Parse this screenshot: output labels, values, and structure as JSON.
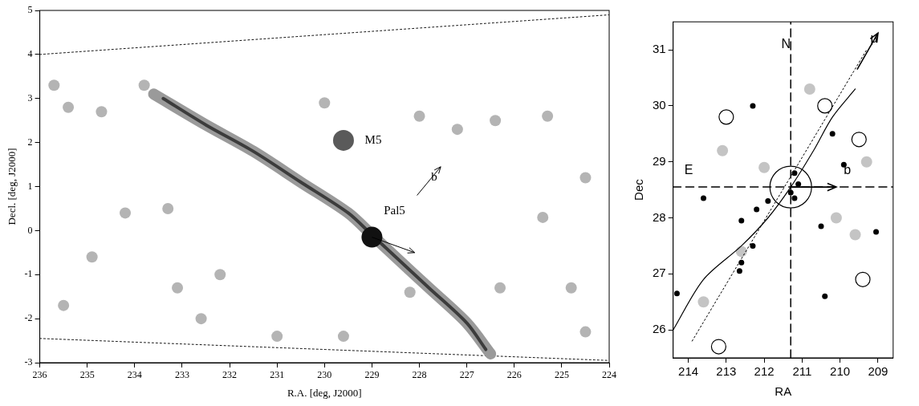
{
  "chart_data": [
    {
      "type": "scatter",
      "x_label": "R.A. [deg, J2000]",
      "y_label": "Decl. [deg, J2000]",
      "xlim": [
        236,
        224
      ],
      "xticks": [
        236,
        235,
        234,
        233,
        232,
        231,
        230,
        229,
        228,
        227,
        226,
        225,
        224
      ],
      "ylim": [
        -3,
        5
      ],
      "yticks": [
        -3,
        -2,
        -1,
        0,
        1,
        2,
        3,
        4,
        5
      ],
      "grid": false,
      "series": [
        {
          "color": "#000000",
          "marker": "none",
          "line_style": "dotted",
          "values": [
            [
              236,
              4.0
            ],
            [
              224,
              4.9
            ]
          ]
        },
        {
          "color": "#000000",
          "marker": "none",
          "line_style": "dotted",
          "values": [
            [
              236,
              -2.45
            ],
            [
              224,
              -2.95
            ]
          ]
        },
        {
          "color": "#b4b4b4",
          "marker": "blob",
          "line_style": "none",
          "values": [
            [
              235.7,
              3.3
            ],
            [
              235.4,
              2.8
            ],
            [
              234.7,
              2.7
            ],
            [
              233.8,
              3.3
            ],
            [
              234.2,
              0.4
            ],
            [
              233.3,
              0.5
            ],
            [
              234.9,
              -0.6
            ],
            [
              235.5,
              -1.7
            ],
            [
              233.1,
              -1.3
            ],
            [
              232.6,
              -2.0
            ],
            [
              231.0,
              -2.4
            ],
            [
              229.6,
              -2.4
            ],
            [
              228.0,
              2.6
            ],
            [
              227.2,
              2.3
            ],
            [
              226.4,
              2.5
            ],
            [
              225.3,
              2.6
            ],
            [
              224.5,
              1.2
            ],
            [
              225.4,
              0.3
            ],
            [
              224.8,
              -1.3
            ],
            [
              224.5,
              -2.3
            ],
            [
              226.3,
              -1.3
            ],
            [
              228.2,
              -1.4
            ],
            [
              230.0,
              2.9
            ],
            [
              232.2,
              -1.0
            ]
          ]
        },
        {
          "color": "#9a9a9a",
          "marker": "none",
          "line_style": "wide",
          "values": [
            [
              233.6,
              3.1
            ],
            [
              232.5,
              2.4
            ],
            [
              231.5,
              1.8
            ],
            [
              230.5,
              1.1
            ],
            [
              229.5,
              0.4
            ],
            [
              229.0,
              -0.1
            ],
            [
              228.5,
              -0.6
            ],
            [
              227.8,
              -1.3
            ],
            [
              227.0,
              -2.1
            ],
            [
              226.5,
              -2.8
            ]
          ]
        },
        {
          "color": "#3c3c3c",
          "marker": "none",
          "line_style": "solid",
          "values": [
            [
              233.4,
              3.0
            ],
            [
              232.5,
              2.4
            ],
            [
              231.5,
              1.8
            ],
            [
              230.5,
              1.1
            ],
            [
              229.5,
              0.4
            ],
            [
              229.0,
              -0.1
            ],
            [
              228.5,
              -0.6
            ],
            [
              227.8,
              -1.3
            ],
            [
              227.0,
              -2.1
            ],
            [
              226.6,
              -2.7
            ]
          ]
        },
        {
          "color": "#5a5a5a",
          "marker": "disc",
          "line_style": "none",
          "values": [
            [
              229.6,
              2.05
            ]
          ]
        },
        {
          "color": "#111111",
          "marker": "disc",
          "line_style": "none",
          "values": [
            [
              229.0,
              -0.15
            ]
          ]
        }
      ],
      "annotations": [
        {
          "text": "M5",
          "x": 229.15,
          "y": 2.05
        },
        {
          "text": "Pal5",
          "x": 228.75,
          "y": 0.45
        },
        {
          "text": "b",
          "x": 227.75,
          "y": 1.2
        }
      ],
      "arrows": [
        {
          "from": [
            229.0,
            -0.15
          ],
          "to": [
            228.1,
            -0.5
          ]
        },
        {
          "from": [
            228.05,
            0.8
          ],
          "to": [
            227.55,
            1.45
          ]
        }
      ]
    },
    {
      "type": "scatter",
      "x_label": "RA",
      "y_label": "Dec",
      "xlim": [
        214.4,
        208.6
      ],
      "xticks": [
        214,
        213,
        212,
        211,
        210,
        209
      ],
      "ylim": [
        25.5,
        31.5
      ],
      "yticks": [
        26,
        27,
        28,
        29,
        30,
        31
      ],
      "grid": false,
      "series": [
        {
          "color": "#c4c4c4",
          "marker": "blob",
          "line_style": "none",
          "values": [
            [
              213.1,
              29.2
            ],
            [
              212.0,
              28.9
            ],
            [
              210.1,
              28.0
            ],
            [
              212.6,
              27.4
            ],
            [
              210.8,
              30.3
            ],
            [
              209.3,
              29.0
            ],
            [
              213.6,
              26.5
            ],
            [
              209.6,
              27.7
            ]
          ]
        },
        {
          "color": "#000000",
          "marker": "none",
          "line_style": "dashed",
          "values": [
            [
              211.3,
              25.5
            ],
            [
              211.3,
              31.5
            ]
          ]
        },
        {
          "color": "#000000",
          "marker": "none",
          "line_style": "dashed",
          "values": [
            [
              214.4,
              28.55
            ],
            [
              208.6,
              28.55
            ]
          ]
        },
        {
          "color": "#000000",
          "marker": "none",
          "line_style": "dotted",
          "values": [
            [
              213.9,
              25.8
            ],
            [
              209.3,
              31.0
            ]
          ]
        },
        {
          "color": "#000000",
          "marker": "none",
          "line_style": "solid",
          "values": [
            [
              214.4,
              26.0
            ],
            [
              213.6,
              26.9
            ],
            [
              212.6,
              27.5
            ],
            [
              211.9,
              28.0
            ],
            [
              211.3,
              28.55
            ],
            [
              210.7,
              29.2
            ],
            [
              210.2,
              29.8
            ],
            [
              209.6,
              30.3
            ]
          ]
        },
        {
          "color": "#000000",
          "marker": "ring",
          "line_style": "none",
          "values": [
            [
              213.0,
              29.8
            ],
            [
              209.4,
              26.9
            ],
            [
              213.2,
              25.7
            ],
            [
              209.5,
              29.4
            ],
            [
              210.4,
              30.0
            ]
          ]
        },
        {
          "color": "#000000",
          "marker": "big_ring",
          "line_style": "none",
          "values": [
            [
              211.3,
              28.55
            ]
          ]
        },
        {
          "color": "#000000",
          "marker": "dot",
          "line_style": "none",
          "values": [
            [
              214.3,
              26.65
            ],
            [
              213.6,
              28.35
            ],
            [
              212.3,
              30.0
            ],
            [
              212.6,
              27.95
            ],
            [
              212.3,
              27.5
            ],
            [
              212.2,
              28.15
            ],
            [
              212.6,
              27.2
            ],
            [
              212.65,
              27.05
            ],
            [
              211.2,
              28.8
            ],
            [
              211.1,
              28.6
            ],
            [
              211.3,
              28.45
            ],
            [
              211.2,
              28.35
            ],
            [
              210.5,
              27.85
            ],
            [
              210.2,
              29.5
            ],
            [
              209.9,
              28.95
            ],
            [
              210.4,
              26.6
            ],
            [
              209.05,
              27.75
            ],
            [
              211.9,
              28.3
            ]
          ]
        }
      ],
      "annotations": [
        {
          "text": "N",
          "x": 211.55,
          "y": 31.1
        },
        {
          "text": "E",
          "x": 214.1,
          "y": 28.85
        },
        {
          "text": "μ",
          "x": 209.2,
          "y": 31.2
        },
        {
          "text": "b",
          "x": 209.9,
          "y": 28.85
        }
      ],
      "arrows": [
        {
          "from": [
            211.3,
            28.55
          ],
          "to": [
            210.1,
            28.55
          ]
        },
        {
          "from": [
            209.55,
            30.65
          ],
          "to": [
            209.0,
            31.3
          ]
        }
      ]
    }
  ]
}
